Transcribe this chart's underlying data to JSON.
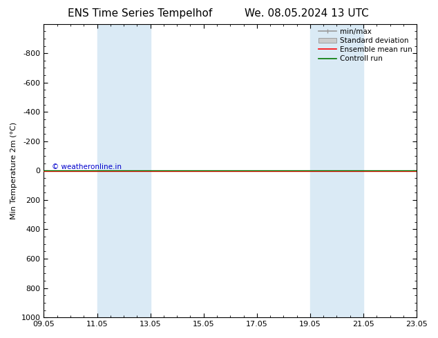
{
  "title_left": "ENS Time Series Tempelhof",
  "title_right": "We. 08.05.2024 13 UTC",
  "ylabel": "Min Temperature 2m (°C)",
  "ylim": [
    -1000,
    1000
  ],
  "yticks": [
    -800,
    -600,
    -400,
    -200,
    0,
    200,
    400,
    600,
    800,
    1000
  ],
  "xlim_start": 0,
  "xlim_end": 14,
  "xtick_positions": [
    0,
    2,
    4,
    6,
    8,
    10,
    12,
    14
  ],
  "xtick_labels": [
    "09.05",
    "11.05",
    "13.05",
    "15.05",
    "17.05",
    "19.05",
    "21.05",
    "23.05"
  ],
  "shaded_bands": [
    {
      "xmin": 2,
      "xmax": 4,
      "color": "#daeaf5"
    },
    {
      "xmin": 10,
      "xmax": 12,
      "color": "#daeaf5"
    }
  ],
  "line_color_red": "#ff0000",
  "line_color_green": "#007700",
  "copyright_text": "© weatheronline.in",
  "copyright_color": "#0000cc",
  "legend_items": [
    {
      "label": "min/max",
      "color": "#999999",
      "lw": 1.2
    },
    {
      "label": "Standard deviation",
      "color": "#cccccc",
      "lw": 6
    },
    {
      "label": "Ensemble mean run",
      "color": "#ff0000",
      "lw": 1.2
    },
    {
      "label": "Controll run",
      "color": "#007700",
      "lw": 1.2
    }
  ],
  "title_fontsize": 11,
  "axis_label_fontsize": 8,
  "tick_fontsize": 8,
  "legend_fontsize": 7.5,
  "background_color": "#ffffff",
  "plot_bg_color": "#ffffff"
}
